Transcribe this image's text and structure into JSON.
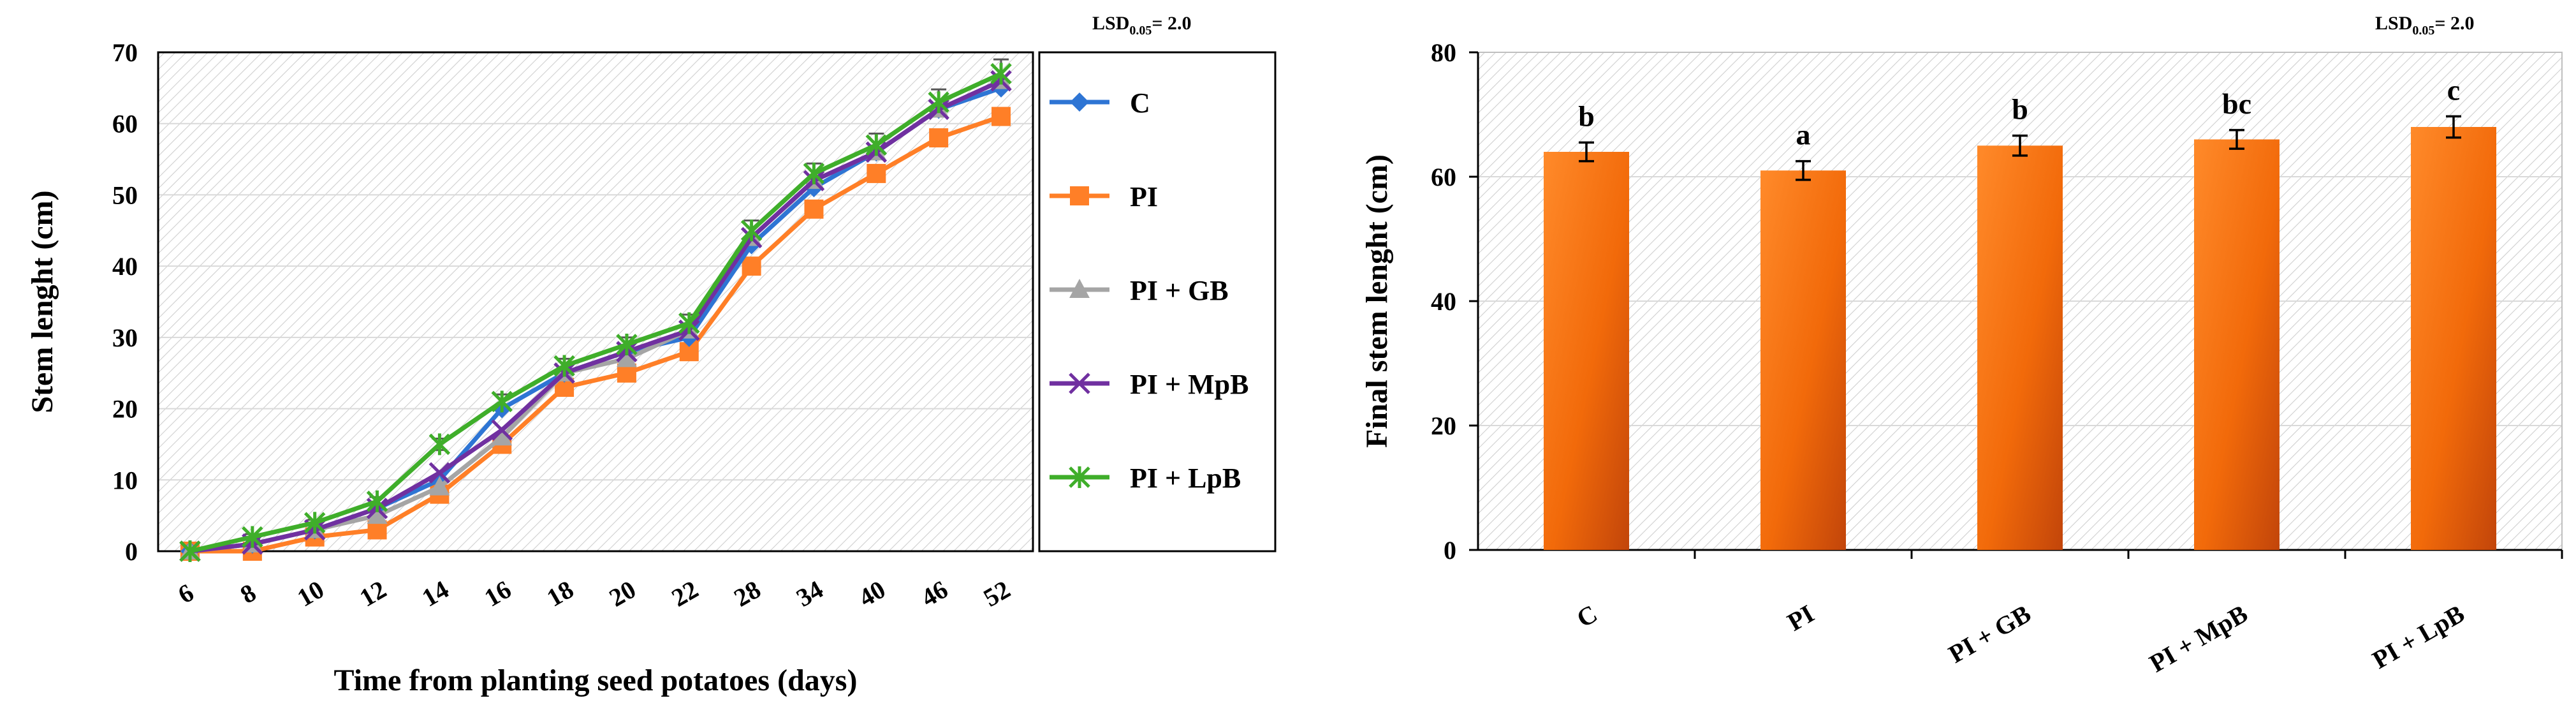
{
  "colors": {
    "C": "#2E75D4",
    "PI": "#FF7F27",
    "PI + GB": "#A5A5A5",
    "PI + MpB": "#7030A0",
    "PI + LpB": "#3FAE2A",
    "bar": "#FF7518",
    "bar_dark": "#D04E05",
    "grid": "#D9D9D9",
    "hatch": "#CFCFCF"
  },
  "chart_data": [
    {
      "type": "line",
      "title": "",
      "lsd_note": {
        "prefix": "LSD",
        "sub": "0.05",
        "suffix": "= 2.0"
      },
      "xlabel": "Time from planting seed potatoes (days)",
      "ylabel": "Stem lenght (cm)",
      "categories": [
        "6",
        "8",
        "10",
        "12",
        "14",
        "16",
        "18",
        "20",
        "22",
        "28",
        "34",
        "40",
        "46",
        "52"
      ],
      "ylim": [
        0,
        70
      ],
      "yticks": [
        "0",
        "10",
        "20",
        "30",
        "40",
        "50",
        "60",
        "70"
      ],
      "grid": true,
      "legend_position": "right",
      "series": [
        {
          "name": "C",
          "marker": "diamond",
          "values": [
            0,
            1,
            3,
            6,
            10,
            20,
            25,
            28,
            30,
            43,
            51,
            56,
            62,
            65
          ]
        },
        {
          "name": "PI",
          "marker": "square",
          "values": [
            0,
            0,
            2,
            3,
            8,
            15,
            23,
            25,
            28,
            40,
            48,
            53,
            58,
            61
          ]
        },
        {
          "name": "PI + GB",
          "marker": "triangle",
          "values": [
            0,
            1,
            3,
            5,
            9,
            16,
            25,
            27,
            31,
            44,
            52,
            56,
            62,
            66
          ]
        },
        {
          "name": "PI + MpB",
          "marker": "x",
          "values": [
            0,
            1,
            3,
            6,
            11,
            17,
            25,
            28,
            31,
            44,
            52,
            56,
            62,
            66
          ]
        },
        {
          "name": "PI + LpB",
          "marker": "star",
          "values": [
            0,
            2,
            4,
            7,
            15,
            21,
            26,
            29,
            32,
            45,
            53,
            57,
            63,
            67
          ]
        }
      ],
      "error_bars": [
        0,
        0.4,
        0.4,
        0.6,
        0.8,
        1,
        1,
        1,
        1.2,
        1.4,
        1.4,
        1.6,
        1.8,
        2
      ]
    },
    {
      "type": "bar",
      "title": "",
      "lsd_note": {
        "prefix": "LSD",
        "sub": "0.05",
        "suffix": "= 2.0"
      },
      "xlabel": "",
      "ylabel": "Final stem lenght (cm)",
      "categories": [
        "C",
        "PI",
        "PI + GB",
        "PI + MpB",
        "PI + LpB"
      ],
      "values": [
        64,
        61,
        65,
        66,
        68
      ],
      "errors": [
        1.5,
        1.5,
        1.6,
        1.5,
        1.7
      ],
      "significance_letters": [
        "b",
        "a",
        "b",
        "bc",
        "c"
      ],
      "ylim": [
        0,
        80
      ],
      "yticks": [
        "0",
        "20",
        "40",
        "60",
        "80"
      ],
      "grid": true
    }
  ]
}
